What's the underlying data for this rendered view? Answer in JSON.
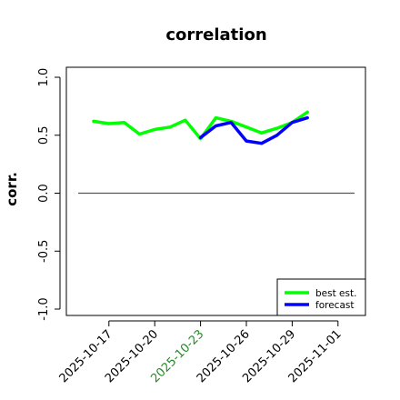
{
  "chart_data": {
    "type": "line",
    "title": "correlation",
    "ylabel": "corr.",
    "xlabel": "",
    "ylim": [
      -1.0,
      1.0
    ],
    "yticks": [
      "-1.0",
      "-0.5",
      "0.0",
      "0.5",
      "1.0"
    ],
    "xticks": [
      {
        "label": "2025-10-17",
        "color": "#000000"
      },
      {
        "label": "2025-10-20",
        "color": "#000000"
      },
      {
        "label": "2025-10-23",
        "color": "#228B22"
      },
      {
        "label": "2025-10-26",
        "color": "#000000"
      },
      {
        "label": "2025-10-29",
        "color": "#000000"
      },
      {
        "label": "2025-11-01",
        "color": "#000000"
      }
    ],
    "x": [
      "2025-10-16",
      "2025-10-17",
      "2025-10-18",
      "2025-10-19",
      "2025-10-20",
      "2025-10-21",
      "2025-10-22",
      "2025-10-23",
      "2025-10-24",
      "2025-10-25",
      "2025-10-26",
      "2025-10-27",
      "2025-10-28",
      "2025-10-29",
      "2025-10-30"
    ],
    "series": [
      {
        "name": "best est.",
        "color": "#00FF00",
        "values": [
          0.62,
          0.6,
          0.61,
          0.51,
          0.55,
          0.57,
          0.63,
          0.47,
          0.65,
          0.62,
          0.57,
          0.52,
          0.56,
          0.61,
          0.7
        ]
      },
      {
        "name": "forecast",
        "color": "#0000FF",
        "values": [
          null,
          null,
          null,
          null,
          null,
          null,
          null,
          0.48,
          0.58,
          0.61,
          0.45,
          0.43,
          0.5,
          0.61,
          0.65
        ]
      }
    ],
    "reference_line": {
      "y": 0.0,
      "color": "#555555"
    },
    "legend": {
      "position": "bottom-right"
    },
    "grid": false
  }
}
